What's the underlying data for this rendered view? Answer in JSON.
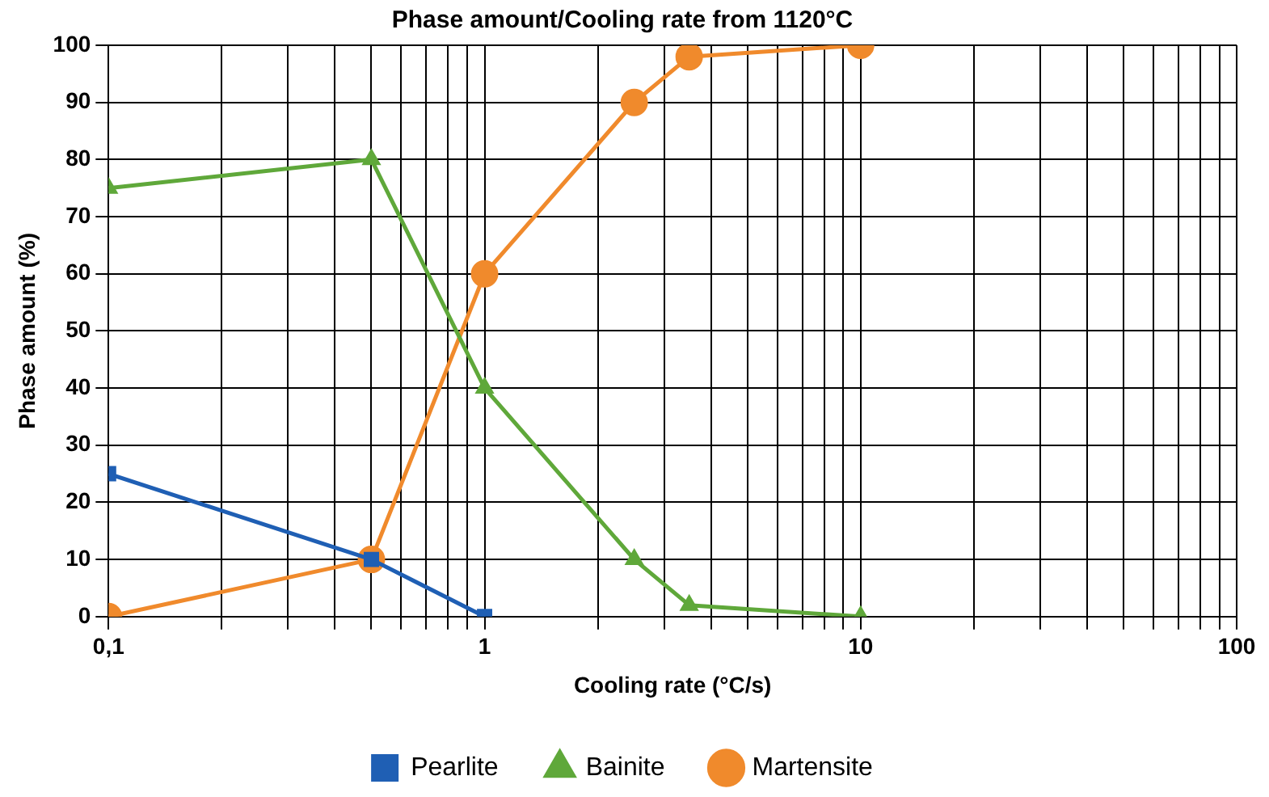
{
  "chart_data": {
    "type": "line",
    "title": "Phase amount/Cooling rate from 1120°C",
    "xlabel": "Cooling rate (°C/s)",
    "ylabel": "Phase amount (%)",
    "log": "x",
    "grid": true,
    "legend": "bottom",
    "line_style": "solid",
    "xlim": [
      0.1,
      100
    ],
    "xticks": [
      {
        "value": 0.1,
        "label": "0,1"
      },
      {
        "value": 0.2,
        "label": null
      },
      {
        "value": 0.3,
        "label": null
      },
      {
        "value": 0.4,
        "label": null
      },
      {
        "value": 0.5,
        "label": null
      },
      {
        "value": 0.6,
        "label": null
      },
      {
        "value": 0.7,
        "label": null
      },
      {
        "value": 0.8,
        "label": null
      },
      {
        "value": 0.9,
        "label": null
      },
      1,
      {
        "value": 2,
        "label": null
      },
      {
        "value": 3,
        "label": null
      },
      {
        "value": 4,
        "label": null
      },
      {
        "value": 5,
        "label": null
      },
      {
        "value": 6,
        "label": null
      },
      {
        "value": 7,
        "label": null
      },
      {
        "value": 8,
        "label": null
      },
      {
        "value": 9,
        "label": null
      },
      10,
      {
        "value": 20,
        "label": null
      },
      {
        "value": 30,
        "label": null
      },
      {
        "value": 40,
        "label": null
      },
      {
        "value": 50,
        "label": null
      },
      {
        "value": 60,
        "label": null
      },
      {
        "value": 70,
        "label": null
      },
      {
        "value": 80,
        "label": null
      },
      {
        "value": 90,
        "label": null
      },
      100
    ],
    "ylim": [
      0,
      100
    ],
    "yticks": [
      0,
      10,
      20,
      30,
      40,
      50,
      60,
      70,
      80,
      90,
      100
    ],
    "series": [
      {
        "name": "Pearlite",
        "color": "#1f5fb4",
        "marker": "square",
        "x": [
          0.1,
          0.5,
          1
        ],
        "values": [
          25,
          10,
          0
        ]
      },
      {
        "name": "Bainite",
        "color": "#5fa83a",
        "marker": "triangle",
        "x": [
          0.1,
          0.5,
          1,
          2.5,
          3.5,
          10
        ],
        "values": [
          75,
          80,
          40,
          10,
          2,
          0
        ]
      },
      {
        "name": "Martensite",
        "color": "#f08a2c",
        "marker": "circle",
        "x": [
          0.1,
          0.5,
          1,
          2.5,
          3.5,
          10
        ],
        "values": [
          0,
          10,
          60,
          90,
          98,
          100
        ]
      }
    ]
  }
}
